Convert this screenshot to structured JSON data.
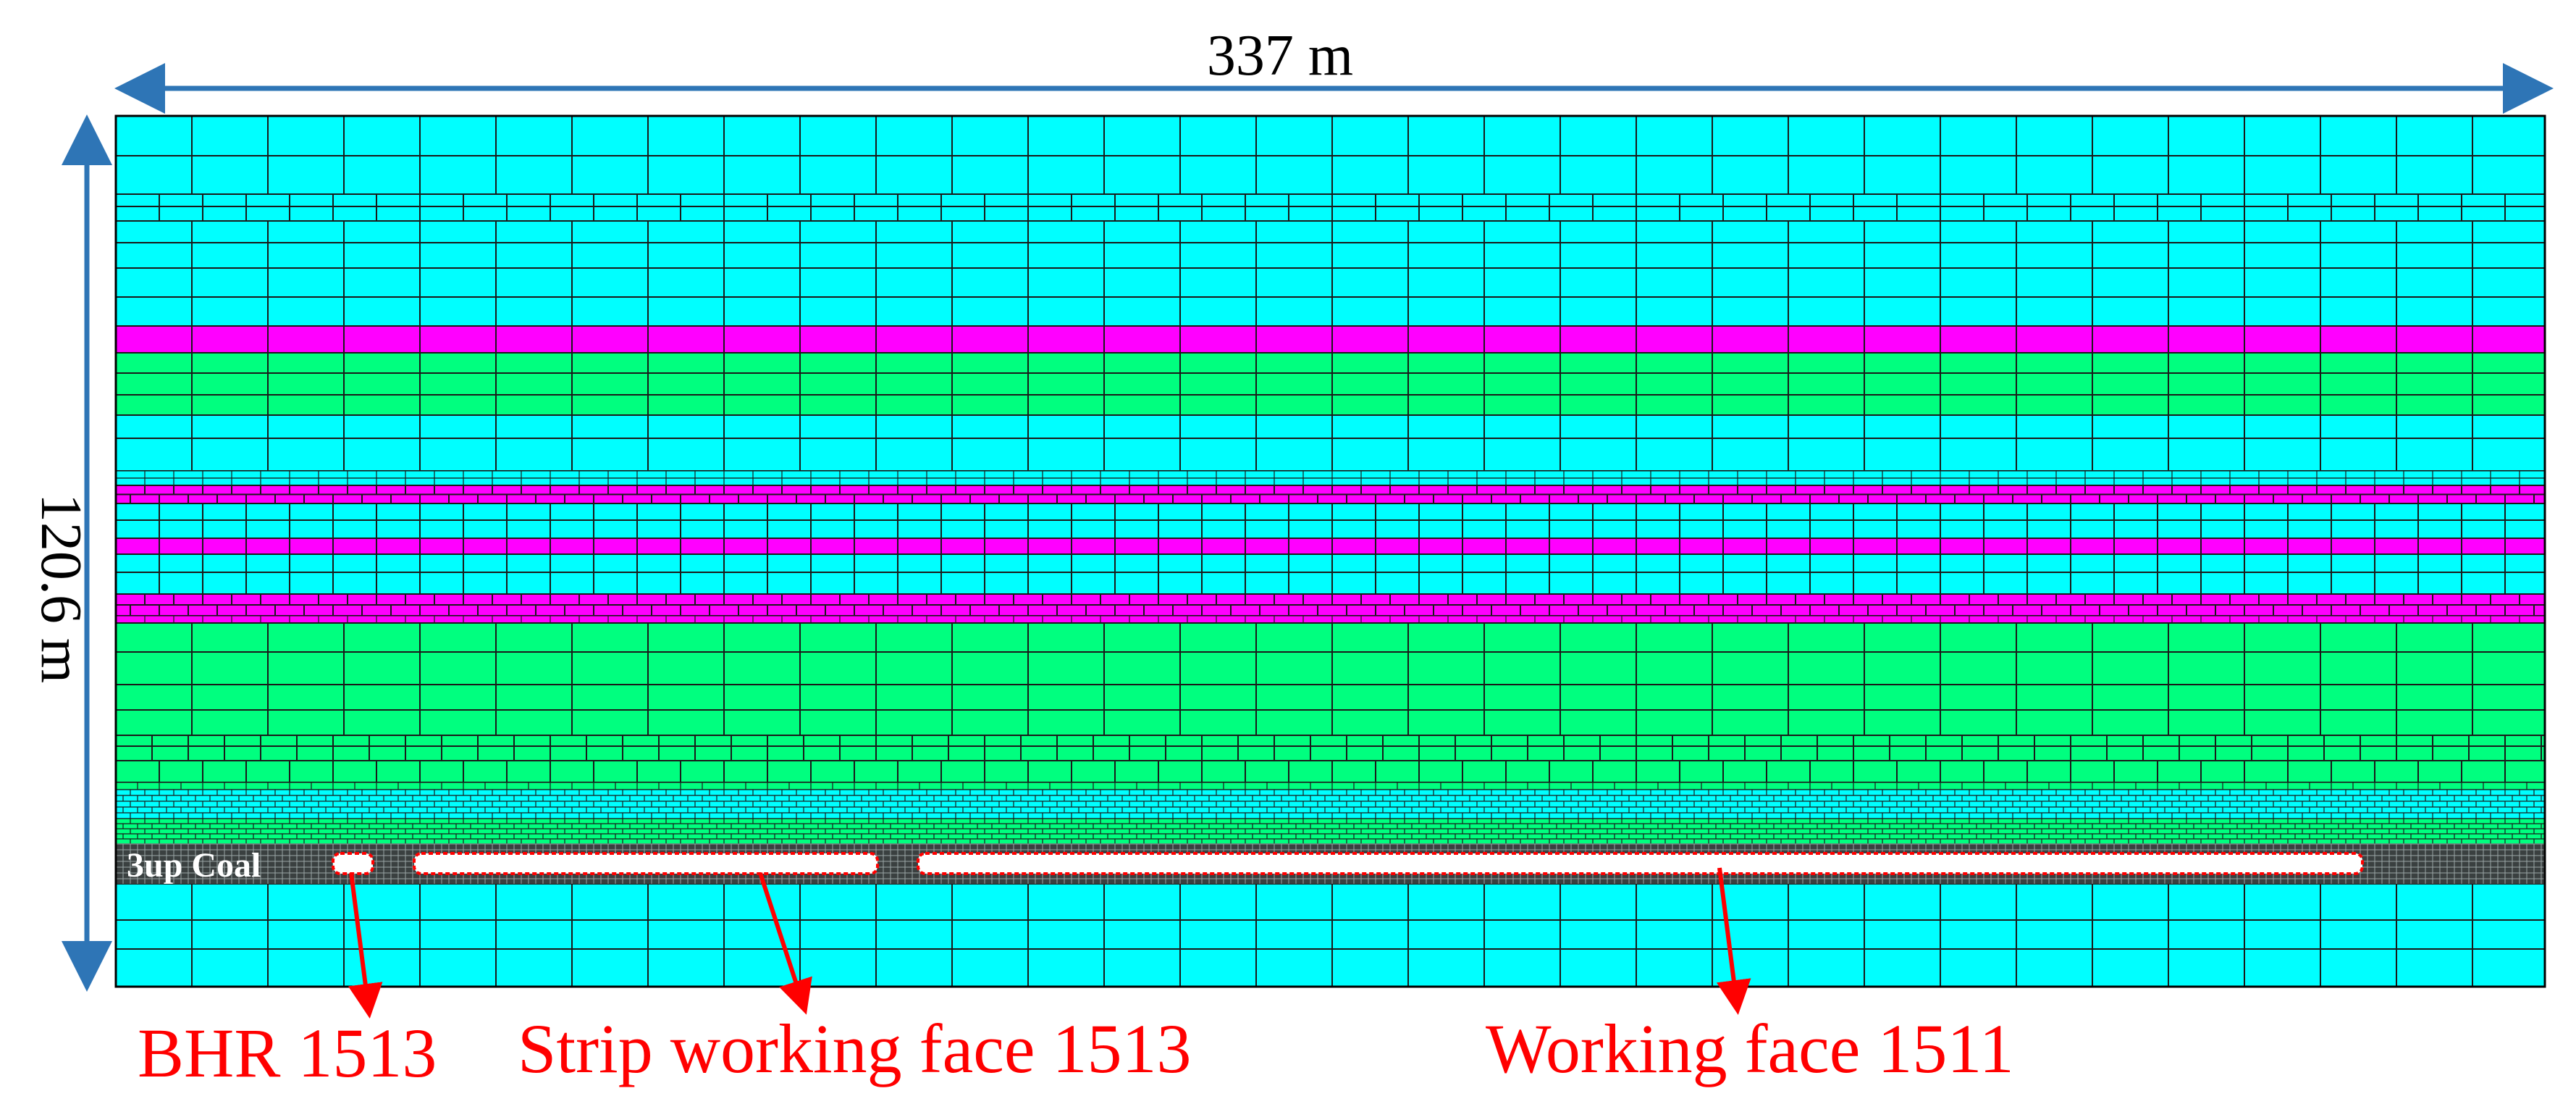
{
  "dimensions": {
    "width_label": "337 m",
    "height_label": "120.6 m"
  },
  "model": {
    "coal_seam_label": "3up Coal",
    "layer_colors": {
      "cyan": "#00FFFF",
      "magenta": "#FF00FF",
      "green": "#00FF7F",
      "fine_mesh": "#5a6a6a",
      "dimension_arrow": "#2E75B6",
      "annotation": "#FF0000",
      "cavity": "#FFFFFF"
    },
    "cavities": [
      {
        "name": "BHR 1513"
      },
      {
        "name": "Strip working face 1513"
      },
      {
        "name": "Working face 1511"
      }
    ]
  },
  "annotations": {
    "bhr": "BHR 1513",
    "strip": "Strip working face 1513",
    "working_face": "Working face 1511"
  }
}
